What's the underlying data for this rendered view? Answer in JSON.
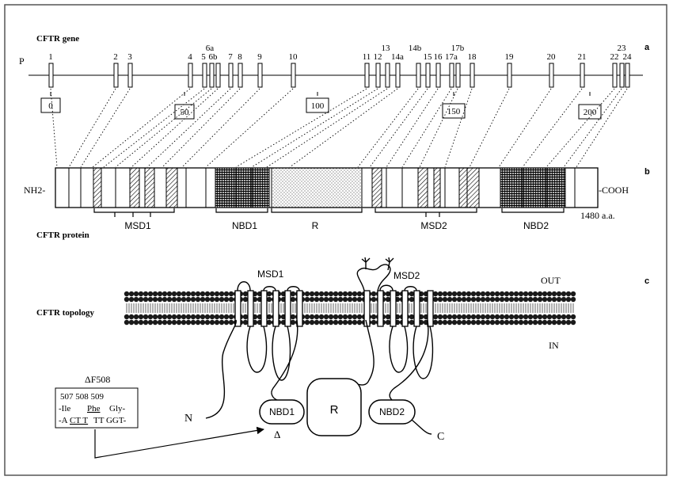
{
  "gene": {
    "title": "CFTR gene",
    "promoter": "P",
    "panel": "a",
    "exons": [
      "1",
      "2",
      "3",
      "4",
      "5",
      "6a",
      "6b",
      "7",
      "8",
      "9",
      "10",
      "11",
      "12",
      "13",
      "14a",
      "14b",
      "15",
      "16",
      "17a",
      "17b",
      "18",
      "19",
      "20",
      "21",
      "22",
      "23",
      "24"
    ],
    "scale_marks": [
      "0",
      "50",
      "100",
      "150",
      "200"
    ]
  },
  "protein": {
    "title": "CFTR protein",
    "panel": "b",
    "nterm": "NH2-",
    "cterm": "-COOH",
    "domains": [
      "MSD1",
      "NBD1",
      "R",
      "MSD2",
      "NBD2"
    ],
    "length": "1480 a.a."
  },
  "topology": {
    "title": "CFTR topology",
    "panel": "c",
    "out": "OUT",
    "in": "IN",
    "msd1": "MSD1",
    "msd2": "MSD2",
    "nbd1": "NBD1",
    "r": "R",
    "nbd2": "NBD2",
    "n": "N",
    "c": "C",
    "delta": "Δ"
  },
  "mutation": {
    "title": "ΔF508",
    "codons": "507 508 509",
    "aa_ile": "-Ile",
    "aa_phe": "Phe",
    "aa_gly": "Gly-",
    "dna_a": "-A",
    "dna_ctt": "CT T",
    "dna_rest": "TT GGT-"
  },
  "colors": {
    "line": "#000000",
    "frame": "#555555",
    "nbd_fill": "#222222",
    "r_fill": "#d9d9d9"
  }
}
